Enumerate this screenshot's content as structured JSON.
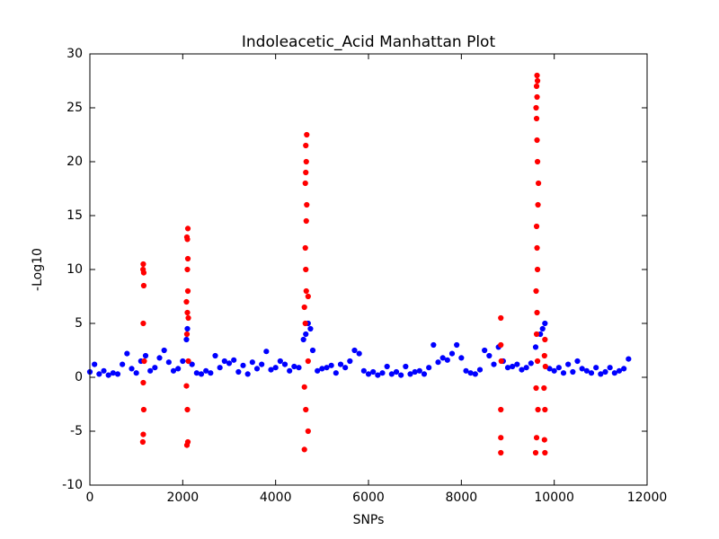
{
  "chart_data": {
    "type": "scatter",
    "title": "Indoleacetic_Acid Manhattan Plot",
    "x_label": "SNPs",
    "y_label": "-Log10",
    "xlim": [
      0,
      12000
    ],
    "xticks": [
      0,
      2000,
      4000,
      6000,
      8000,
      10000,
      12000
    ],
    "ylim": [
      -10,
      30
    ],
    "yticks": [
      -10,
      -5,
      0,
      5,
      10,
      15,
      20,
      25,
      30
    ],
    "series": [
      {
        "color": "#0000ff",
        "x": [
          0,
          100,
          200,
          300,
          400,
          500,
          600,
          700,
          800,
          900,
          1000,
          1100,
          1200,
          1300,
          1400,
          1500,
          1600,
          1700,
          1800,
          1900,
          2000,
          2100,
          2200,
          2300,
          2400,
          2500,
          2600,
          2700,
          2800,
          2900,
          3000,
          3100,
          3200,
          3300,
          3400,
          3500,
          3600,
          3700,
          3800,
          3900,
          4000,
          4100,
          4200,
          4300,
          4400,
          4500,
          4600,
          4700,
          4800,
          4900,
          5000,
          5100,
          5200,
          5300,
          5400,
          5500,
          5600,
          5700,
          5800,
          5900,
          6000,
          6100,
          6200,
          6300,
          6400,
          6500,
          6600,
          6700,
          6800,
          6900,
          7000,
          7100,
          7200,
          7300,
          7400,
          7500,
          7600,
          7700,
          7800,
          7900,
          8000,
          8100,
          8200,
          8300,
          8400,
          8500,
          8600,
          8700,
          8800,
          8900,
          9000,
          9100,
          9200,
          9300,
          9400,
          9500,
          9600,
          9700,
          9800,
          9900,
          10000,
          10100,
          10200,
          10300,
          10400,
          10500,
          10600,
          10700,
          10800,
          10900,
          11000,
          11100,
          11200,
          11300,
          11400,
          11500,
          11600,
          2080,
          4650,
          4750,
          9750
        ],
        "values": [
          0.5,
          1.2,
          0.3,
          0.6,
          0.2,
          0.4,
          0.3,
          1.2,
          2.2,
          0.8,
          0.4,
          1.5,
          2.0,
          0.6,
          0.9,
          1.8,
          2.5,
          1.4,
          0.6,
          0.8,
          1.5,
          4.5,
          1.2,
          0.4,
          0.3,
          0.6,
          0.4,
          2.0,
          0.9,
          1.5,
          1.3,
          1.6,
          0.5,
          1.1,
          0.3,
          1.4,
          0.8,
          1.2,
          2.4,
          0.7,
          0.9,
          1.5,
          1.2,
          0.6,
          1.0,
          0.9,
          3.5,
          5.0,
          2.5,
          0.6,
          0.8,
          0.9,
          1.1,
          0.4,
          1.2,
          0.9,
          1.5,
          2.5,
          2.2,
          0.6,
          0.3,
          0.5,
          0.2,
          0.4,
          1.0,
          0.3,
          0.5,
          0.2,
          1.0,
          0.3,
          0.5,
          0.6,
          0.3,
          0.9,
          3.0,
          1.4,
          1.8,
          1.6,
          2.2,
          3.0,
          1.8,
          0.6,
          0.4,
          0.3,
          0.7,
          2.5,
          2.0,
          1.2,
          2.8,
          1.5,
          0.9,
          1.0,
          1.2,
          0.7,
          0.9,
          1.3,
          2.8,
          4.0,
          5.0,
          0.8,
          0.6,
          0.9,
          0.4,
          1.2,
          0.5,
          1.5,
          0.8,
          0.6,
          0.4,
          0.9,
          0.3,
          0.5,
          0.9,
          0.4,
          0.6,
          0.8,
          1.7,
          3.5,
          4.0,
          4.5,
          4.5
        ]
      },
      {
        "color": "#ff0000",
        "x": [
          1140,
          1150,
          1160,
          1150,
          1170,
          1150,
          1160,
          1150,
          1160,
          1145,
          2090,
          2110,
          2100,
          2080,
          2120,
          2090,
          2100,
          2110,
          2100,
          2110,
          2090,
          2110,
          2100,
          2120,
          2080,
          4620,
          4700,
          4650,
          4620,
          4700,
          4640,
          4660,
          4650,
          4640,
          4660,
          4670,
          4640,
          4650,
          4660,
          4670,
          4650,
          4700,
          4620,
          8850,
          8850,
          8850,
          8860,
          8850,
          8850,
          9600,
          9620,
          9650,
          9610,
          9640,
          9620,
          9630,
          9610,
          9640,
          9630,
          9620,
          9650,
          9660,
          9640,
          9630,
          9620,
          9610,
          9630,
          9620,
          9630,
          9640,
          9800,
          9790,
          9800,
          9780,
          9810,
          9790,
          9800
        ],
        "values": [
          -6,
          -5.3,
          -3,
          -0.5,
          1.5,
          5,
          8.5,
          10.5,
          9.7,
          10,
          -6.3,
          -6,
          -3,
          -0.8,
          1.5,
          4,
          6,
          8,
          10,
          11,
          13,
          13.8,
          12.8,
          5.5,
          7,
          -6.7,
          -5,
          -3,
          -0.9,
          1.5,
          5,
          8,
          10,
          12,
          14.5,
          16,
          18,
          19,
          20,
          22.5,
          21.5,
          7.5,
          6.5,
          -7,
          -5.6,
          -3,
          1.5,
          3,
          5.5,
          -7,
          -5.6,
          -3,
          -1,
          1.5,
          4,
          6,
          8,
          10,
          12,
          14,
          16,
          18,
          20,
          22,
          24,
          25,
          26,
          27,
          28,
          27.5,
          -7,
          -5.8,
          -3,
          -1,
          1,
          2,
          3.5
        ]
      }
    ]
  }
}
